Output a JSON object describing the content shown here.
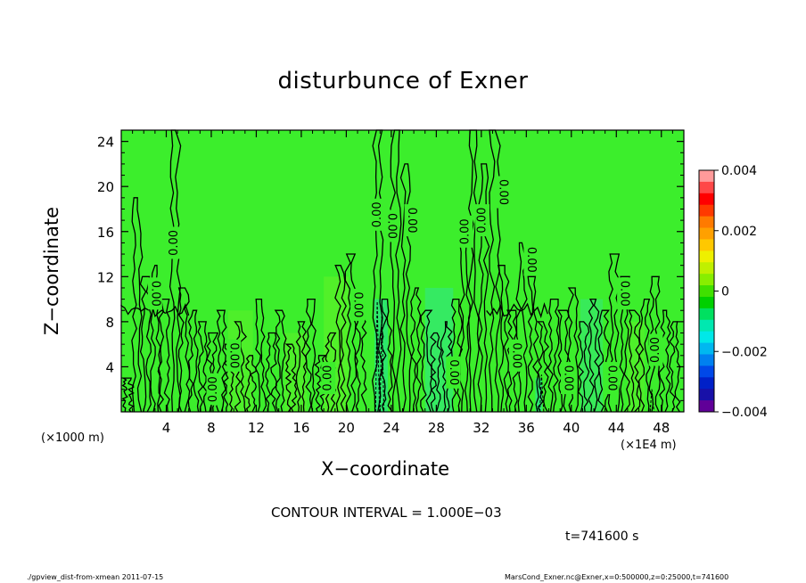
{
  "chart_data": {
    "type": "contour",
    "title": "disturbunce of Exner",
    "xlabel": "X−coordinate",
    "ylabel": "Z−coordinate",
    "x_unit_left": "(×1000 m)",
    "x_unit_right": "(×1E4 m)",
    "xlim": [
      0,
      50
    ],
    "ylim": [
      0,
      25
    ],
    "xticks": [
      "4",
      "8",
      "12",
      "16",
      "20",
      "24",
      "28",
      "32",
      "36",
      "40",
      "44",
      "48"
    ],
    "xtick_values": [
      4,
      8,
      12,
      16,
      20,
      24,
      28,
      32,
      36,
      40,
      44,
      48
    ],
    "yticks": [
      "4",
      "8",
      "12",
      "16",
      "20",
      "24"
    ],
    "ytick_values": [
      4,
      8,
      12,
      16,
      20,
      24
    ],
    "contour_interval_text": "CONTOUR INTERVAL = 1.000E−03",
    "contour_label": "0.00",
    "contour_labels": [
      {
        "x": 4.7,
        "z": 15.0,
        "rot": -90
      },
      {
        "x": 3.0,
        "z": 10.5,
        "rot": 90
      },
      {
        "x": 8.2,
        "z": 2.0,
        "rot": -90
      },
      {
        "x": 10.0,
        "z": 5.0,
        "rot": 90
      },
      {
        "x": 18.4,
        "z": 3.0,
        "rot": -90
      },
      {
        "x": 21.0,
        "z": 9.5,
        "rot": 90
      },
      {
        "x": 22.8,
        "z": 17.5,
        "rot": -90
      },
      {
        "x": 24.0,
        "z": 16.5,
        "rot": 90
      },
      {
        "x": 25.8,
        "z": 17.0,
        "rot": 90
      },
      {
        "x": 29.5,
        "z": 3.5,
        "rot": 90
      },
      {
        "x": 30.6,
        "z": 16.0,
        "rot": -90
      },
      {
        "x": 32.1,
        "z": 17.0,
        "rot": -90
      },
      {
        "x": 33.9,
        "z": 19.5,
        "rot": 90
      },
      {
        "x": 35.1,
        "z": 5.0,
        "rot": 90
      },
      {
        "x": 36.4,
        "z": 13.5,
        "rot": 90
      },
      {
        "x": 39.7,
        "z": 3.0,
        "rot": 90
      },
      {
        "x": 43.6,
        "z": 3.0,
        "rot": 90
      },
      {
        "x": 44.7,
        "z": 10.5,
        "rot": 90
      },
      {
        "x": 47.5,
        "z": 5.5,
        "rot": -90
      }
    ],
    "colorbar": {
      "ticks": [
        "0.004",
        "0.002",
        "0",
        "−0.002",
        "−0.004"
      ],
      "tick_values": [
        0.004,
        0.002,
        0,
        -0.002,
        -0.004
      ],
      "range": [
        -0.004,
        0.004
      ],
      "colors": [
        "#ff9a9a",
        "#ff4848",
        "#ff0000",
        "#ff3a00",
        "#ff7a00",
        "#ffa000",
        "#ffc800",
        "#eef000",
        "#c0f000",
        "#88ee00",
        "#40e000",
        "#00d000",
        "#00e060",
        "#00e8b0",
        "#00e8e8",
        "#00b8f0",
        "#0080f0",
        "#0048e8",
        "#0020c8",
        "#1810a8",
        "#600098"
      ]
    },
    "background_color": "#3cee2c"
  },
  "time_text": "t=741600 s",
  "footer_left": "./gpview_dist-from-xmean  2011-07-15",
  "footer_right": "MarsCond_Exner.nc@Exner,x=0:500000,z=0:25000,t=741600"
}
